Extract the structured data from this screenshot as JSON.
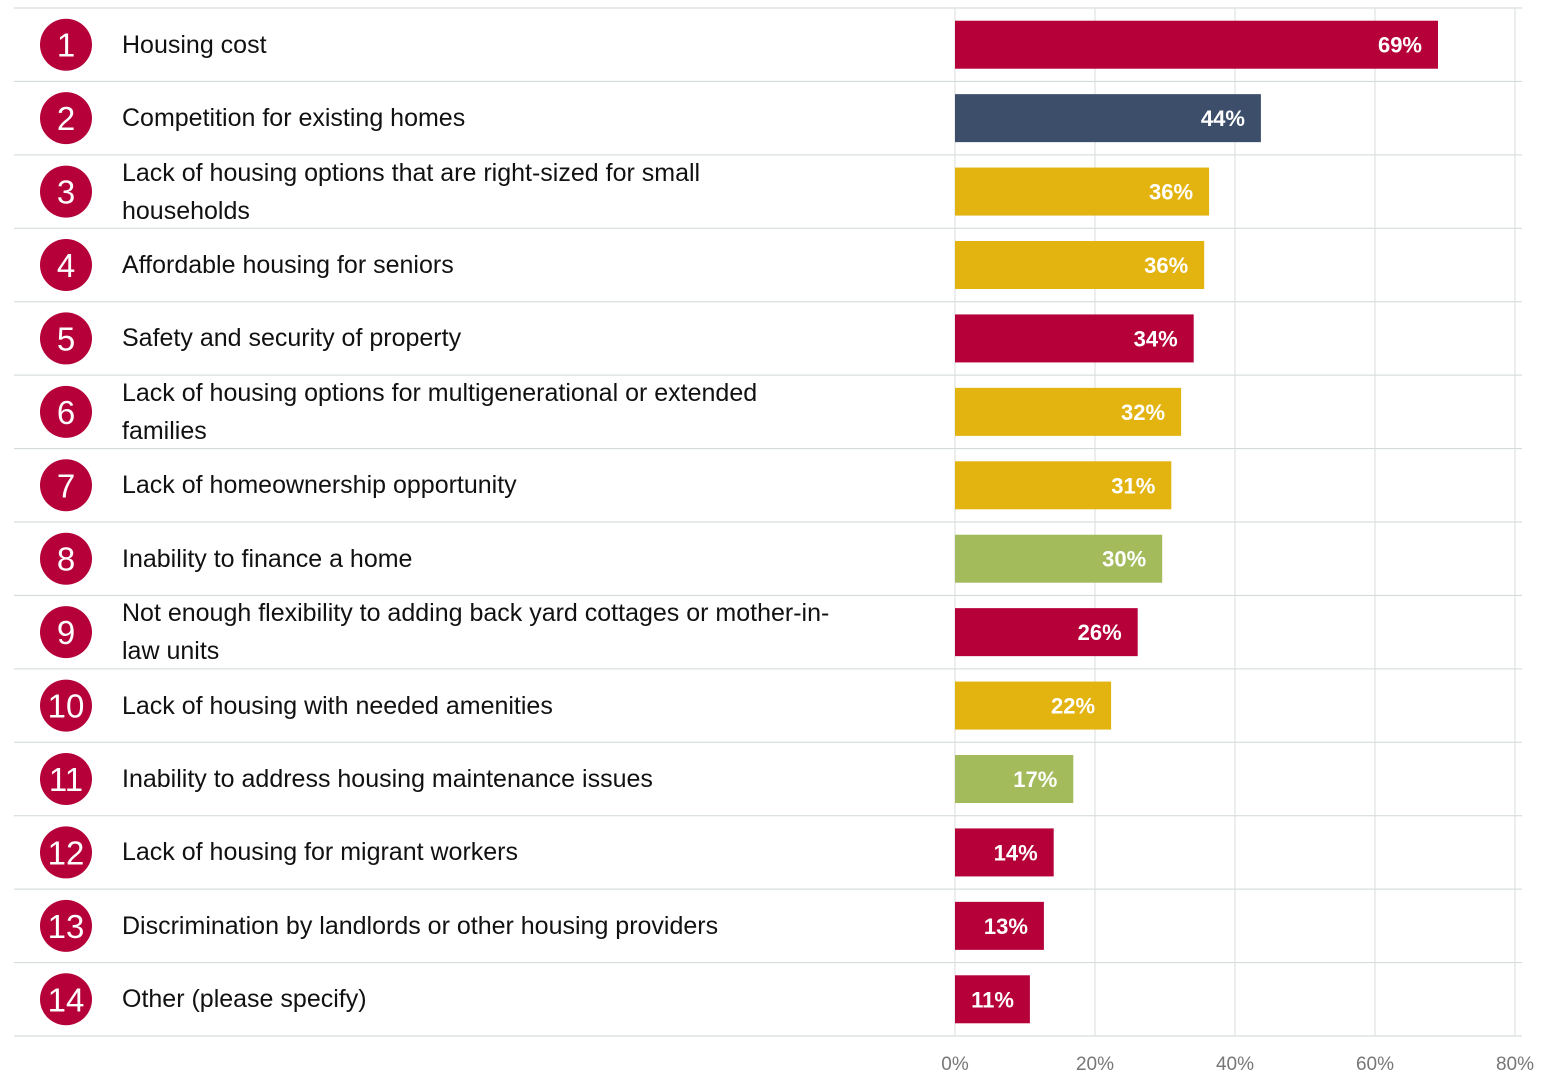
{
  "chart_data": {
    "type": "bar",
    "ranks": [
      1,
      2,
      3,
      4,
      5,
      6,
      7,
      8,
      9,
      10,
      11,
      12,
      13,
      14
    ],
    "categories": [
      "Housing cost",
      "Competition for existing homes",
      "Lack of housing options that are right-sized for small\nhouseholds",
      "Affordable housing for seniors",
      "Safety and security of property",
      "Lack of housing options for multigenerational or extended\nfamilies",
      "Lack of homeownership opportunity",
      "Inability to finance a home",
      "Not enough flexibility to adding back yard cottages or mother-in-\nlaw units",
      "Lack of housing with needed amenities",
      "Inability to address housing maintenance issues",
      "Lack of housing for migrant workers",
      "Discrimination by landlords or other housing providers",
      "Other (please specify)"
    ],
    "values": [
      69.0,
      43.7,
      36.3,
      35.6,
      34.1,
      32.3,
      30.9,
      29.6,
      26.1,
      22.3,
      16.9,
      14.1,
      12.7,
      10.7
    ],
    "value_labels": [
      "69%",
      "44%",
      "36%",
      "36%",
      "34%",
      "32%",
      "31%",
      "30%",
      "26%",
      "22%",
      "17%",
      "14%",
      "13%",
      "11%"
    ],
    "colors": [
      "#b5003a",
      "#3d4e6b",
      "#e3b30f",
      "#e3b30f",
      "#b5003a",
      "#e3b30f",
      "#e3b30f",
      "#a3bb5b",
      "#b5003a",
      "#e3b30f",
      "#a3bb5b",
      "#b5003a",
      "#b5003a",
      "#b5003a"
    ],
    "rank_color": "#b5003a",
    "xlim": [
      0,
      80
    ],
    "xticks": [
      {
        "value": 0,
        "label": "0%"
      },
      {
        "value": 20,
        "label": "20%"
      },
      {
        "value": 40,
        "label": "40%"
      },
      {
        "value": 60,
        "label": "60%"
      },
      {
        "value": 80,
        "label": "80%"
      }
    ],
    "grid": true
  }
}
